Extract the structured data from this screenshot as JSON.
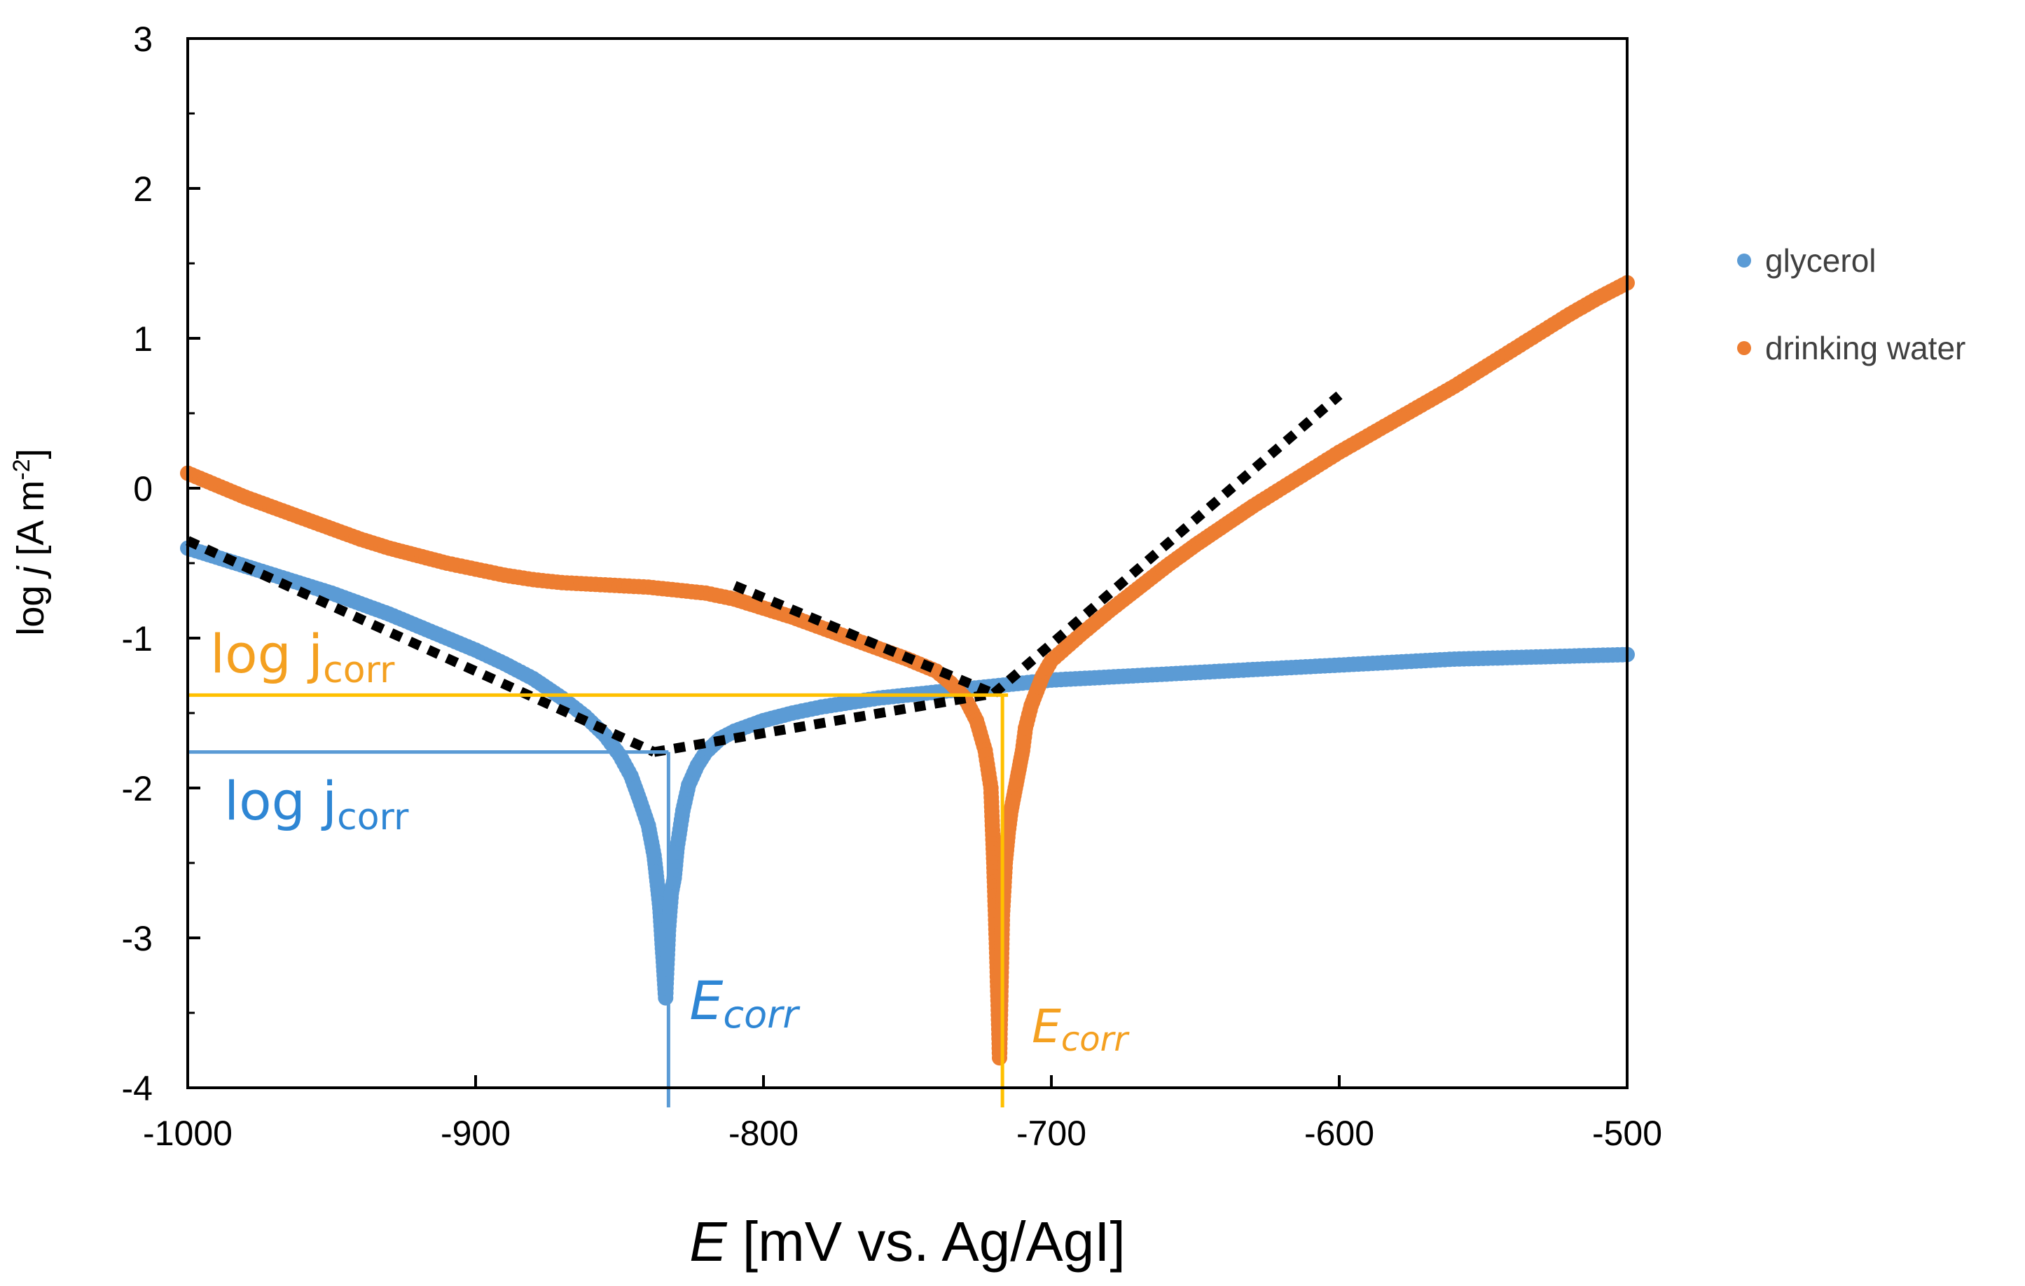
{
  "colors": {
    "glycerol": "#5b9bd5",
    "drinking_water": "#ed7d31",
    "fit": "#000000",
    "orange_guide": "#ffc000",
    "blue_guide": "#5b9bd5",
    "orange_text": "#f4a020",
    "blue_text": "#2e86d4"
  },
  "chart_data": {
    "type": "scatter",
    "title": "",
    "xlabel": {
      "italic": "E",
      "rest": " [mV vs. Ag/AgI]"
    },
    "ylabel": {
      "pre": "log ",
      "italic": "j",
      "unit": " [A m",
      "sup": "-2",
      "close": "]"
    },
    "xlim": [
      -1000,
      -500
    ],
    "ylim": [
      -4,
      3
    ],
    "xticks": [
      -1000,
      -900,
      -800,
      -700,
      -600,
      -500
    ],
    "xtick_labels": [
      "-1000",
      "-900",
      "-800",
      "-700",
      "-600",
      "-500"
    ],
    "yticks": [
      -4,
      -3,
      -2,
      -1,
      0,
      1,
      2,
      3
    ],
    "ytick_labels": [
      "-4",
      "-3",
      "-2",
      "-1",
      "0",
      "1",
      "2",
      "3"
    ],
    "grid": false,
    "legend": {
      "placement": "right",
      "entries": [
        "glycerol",
        "drinking water"
      ]
    },
    "series": [
      {
        "name": "glycerol",
        "color_key": "glycerol",
        "x": [
          -1000,
          -990,
          -980,
          -970,
          -960,
          -950,
          -940,
          -930,
          -920,
          -910,
          -900,
          -890,
          -880,
          -870,
          -862,
          -855,
          -850,
          -846,
          -843,
          -840,
          -838,
          -837,
          -836,
          -835,
          -834,
          -833,
          -832,
          -831,
          -830,
          -828,
          -826,
          -823,
          -820,
          -815,
          -810,
          -800,
          -790,
          -780,
          -770,
          -760,
          -750,
          -740,
          -730,
          -720,
          -710,
          -700,
          -690,
          -680,
          -660,
          -640,
          -620,
          -600,
          -580,
          -560,
          -540,
          -520,
          -500
        ],
        "y": [
          -0.4,
          -0.46,
          -0.52,
          -0.58,
          -0.64,
          -0.7,
          -0.77,
          -0.84,
          -0.92,
          -1.0,
          -1.08,
          -1.17,
          -1.27,
          -1.4,
          -1.52,
          -1.65,
          -1.78,
          -1.92,
          -2.08,
          -2.25,
          -2.45,
          -2.62,
          -2.8,
          -3.1,
          -3.4,
          -2.95,
          -2.7,
          -2.6,
          -2.4,
          -2.15,
          -1.98,
          -1.85,
          -1.76,
          -1.67,
          -1.62,
          -1.55,
          -1.5,
          -1.46,
          -1.43,
          -1.4,
          -1.38,
          -1.36,
          -1.34,
          -1.32,
          -1.3,
          -1.28,
          -1.27,
          -1.26,
          -1.24,
          -1.22,
          -1.2,
          -1.18,
          -1.16,
          -1.14,
          -1.13,
          -1.12,
          -1.11
        ]
      },
      {
        "name": "drinking water",
        "color_key": "drinking_water",
        "x": [
          -1000,
          -990,
          -980,
          -970,
          -960,
          -950,
          -940,
          -930,
          -920,
          -910,
          -900,
          -890,
          -880,
          -870,
          -860,
          -850,
          -840,
          -830,
          -820,
          -810,
          -800,
          -790,
          -780,
          -770,
          -760,
          -750,
          -740,
          -735,
          -730,
          -726,
          -723,
          -721,
          -720,
          -719,
          -718,
          -717,
          -716,
          -715,
          -714,
          -713,
          -712,
          -711,
          -710,
          -709,
          -707,
          -705,
          -703,
          -700,
          -690,
          -680,
          -670,
          -660,
          -650,
          -640,
          -630,
          -620,
          -610,
          -600,
          -590,
          -580,
          -570,
          -560,
          -550,
          -540,
          -530,
          -520,
          -510,
          -500
        ],
        "y": [
          0.1,
          0.02,
          -0.06,
          -0.13,
          -0.2,
          -0.27,
          -0.34,
          -0.4,
          -0.45,
          -0.5,
          -0.54,
          -0.58,
          -0.61,
          -0.63,
          -0.64,
          -0.65,
          -0.66,
          -0.68,
          -0.7,
          -0.74,
          -0.8,
          -0.86,
          -0.93,
          -1.0,
          -1.07,
          -1.14,
          -1.22,
          -1.3,
          -1.4,
          -1.55,
          -1.75,
          -2.0,
          -2.5,
          -3.1,
          -3.8,
          -2.85,
          -2.5,
          -2.3,
          -2.15,
          -2.05,
          -1.95,
          -1.85,
          -1.75,
          -1.6,
          -1.45,
          -1.35,
          -1.25,
          -1.15,
          -0.98,
          -0.82,
          -0.67,
          -0.52,
          -0.38,
          -0.25,
          -0.12,
          0.0,
          0.12,
          0.24,
          0.35,
          0.46,
          0.57,
          0.68,
          0.8,
          0.92,
          1.04,
          1.16,
          1.27,
          1.37
        ]
      }
    ],
    "fit_lines": [
      {
        "name": "glycerol tafel cathodic",
        "x": [
          -1000,
          -838
        ],
        "y": [
          -0.35,
          -1.76
        ]
      },
      {
        "name": "glycerol tafel anodic",
        "x": [
          -838,
          -720
        ],
        "y": [
          -1.76,
          -1.37
        ]
      },
      {
        "name": "drinking water tafel cathodic",
        "x": [
          -810,
          -720
        ],
        "y": [
          -0.65,
          -1.37
        ]
      },
      {
        "name": "drinking water tafel anodic",
        "x": [
          -720,
          -600
        ],
        "y": [
          -1.37,
          0.62
        ]
      }
    ],
    "annotations": {
      "orange": {
        "E_corr": -717,
        "log_jcorr": -1.38,
        "jcorr_label": "log j",
        "jcorr_sub": "corr",
        "ecorr_label": "E",
        "ecorr_sub": "corr"
      },
      "blue": {
        "E_corr": -833,
        "log_jcorr": -1.76,
        "jcorr_label": "log j",
        "jcorr_sub": "corr",
        "ecorr_label": "E",
        "ecorr_sub": "corr"
      }
    }
  }
}
